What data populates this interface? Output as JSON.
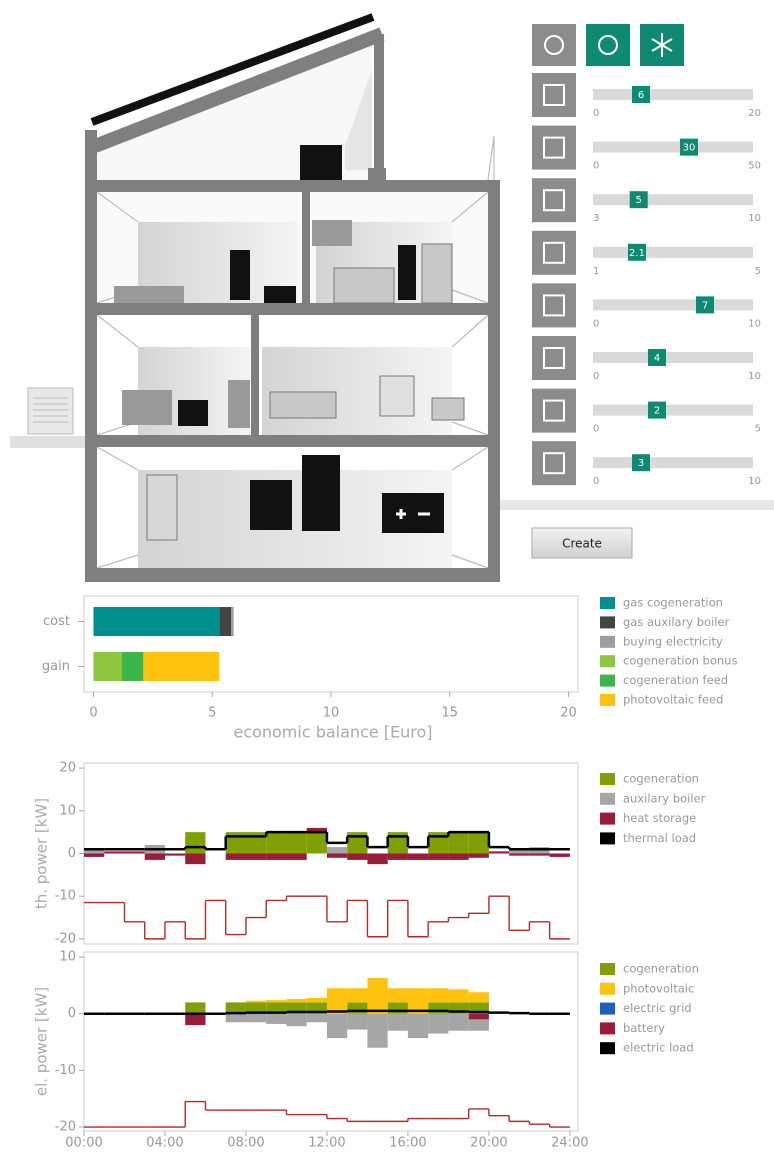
{
  "sliders": [
    {
      "value": 6,
      "min": 0,
      "max": 20
    },
    {
      "value": 30,
      "min": 0,
      "max": 50
    },
    {
      "value": 5,
      "min": 3,
      "max": 10
    },
    {
      "value": 2.1,
      "min": 1,
      "max": 5
    },
    {
      "value": 7,
      "min": 0,
      "max": 10
    },
    {
      "value": 4,
      "min": 0,
      "max": 10
    },
    {
      "value": 2,
      "min": 0,
      "max": 5
    },
    {
      "value": 3,
      "min": 0,
      "max": 10
    }
  ],
  "create_button": "Create",
  "chart_data": [
    {
      "type": "bar",
      "orientation": "horizontal",
      "stacked": true,
      "categories": [
        "cost",
        "gain"
      ],
      "xlabel": "economic balance [Euro]",
      "xlim": [
        -0.4,
        20.4
      ],
      "xticks": [
        0,
        5,
        10,
        15,
        20
      ],
      "series": [
        {
          "name": "gas cogeneration",
          "color": "#00918f",
          "values": [
            5.3,
            0
          ]
        },
        {
          "name": "gas auxilary boiler",
          "color": "#444444",
          "values": [
            0.5,
            0
          ]
        },
        {
          "name": "buying electricity",
          "color": "#9e9e9e",
          "values": [
            0.1,
            0
          ]
        },
        {
          "name": "cogeneration bonus",
          "color": "#8dc63f",
          "values": [
            0,
            1.2
          ]
        },
        {
          "name": "cogeneration feed",
          "color": "#3cb54a",
          "values": [
            0,
            0.9
          ]
        },
        {
          "name": "photovoltaic feed",
          "color": "#ffc20e",
          "values": [
            0,
            3.2
          ]
        }
      ]
    },
    {
      "type": "step",
      "ylabel": "th. power [kW]",
      "x": [
        0,
        1,
        2,
        3,
        4,
        5,
        6,
        7,
        8,
        9,
        10,
        11,
        12,
        13,
        14,
        15,
        16,
        17,
        18,
        19,
        20,
        21,
        22,
        23
      ],
      "xlim": [
        0,
        24.4
      ],
      "ylim": [
        -21.2,
        21.2
      ],
      "yticks": [
        20,
        10,
        0,
        -10,
        -20
      ],
      "series": [
        {
          "name": "cogeneration",
          "color": "#7fa000",
          "kind": "bar",
          "values": [
            0,
            0,
            0,
            0,
            0,
            5,
            0,
            5,
            5,
            5,
            5,
            5,
            0,
            5,
            0,
            5,
            0,
            5,
            5,
            5,
            0,
            0,
            0,
            0
          ]
        },
        {
          "name": "auxilary boiler",
          "color": "#a6a6a6",
          "kind": "bar",
          "values": [
            1,
            0,
            0,
            2,
            0,
            0,
            0,
            0,
            0,
            0,
            0,
            0,
            1.5,
            0,
            0,
            0,
            0,
            0,
            0,
            0,
            0,
            1,
            1.5,
            0
          ]
        },
        {
          "name": "heat storage",
          "color": "#9b1b3a",
          "kind": "bar",
          "values": [
            -0.8,
            0.5,
            0.5,
            -1.5,
            -0.5,
            -2.5,
            0,
            -1.5,
            -1.5,
            -1.5,
            -1.5,
            1,
            -1,
            -1.5,
            -2.5,
            -1.5,
            -1.5,
            -1.5,
            -1.5,
            -1,
            0.5,
            -0.5,
            -0.5,
            -0.8
          ]
        },
        {
          "name": "thermal load",
          "color": "#000000",
          "kind": "line",
          "values": [
            1,
            1,
            1,
            1,
            1,
            1.5,
            1,
            4,
            4,
            5,
            5,
            5,
            2.5,
            4,
            1.5,
            4,
            1.5,
            4,
            5,
            5,
            1.5,
            1,
            1,
            1
          ]
        },
        {
          "color": "#b22a2a",
          "kind": "line",
          "values": [
            -11.5,
            -11.5,
            -16,
            -20,
            -16,
            -20,
            -11,
            -19,
            -15,
            -11,
            -10,
            -10,
            -16,
            -11,
            -19.5,
            -11,
            -19.5,
            -16,
            -15,
            -14,
            -10,
            -18,
            -16,
            -20
          ]
        }
      ]
    },
    {
      "type": "step",
      "ylabel": "el. power [kW]",
      "x": [
        0,
        1,
        2,
        3,
        4,
        5,
        6,
        7,
        8,
        9,
        10,
        11,
        12,
        13,
        14,
        15,
        16,
        17,
        18,
        19,
        20,
        21,
        22,
        23
      ],
      "xlim": [
        0,
        24.4
      ],
      "xticks": [
        {
          "value": 0,
          "label": "00:00"
        },
        {
          "value": 4,
          "label": "04:00"
        },
        {
          "value": 8,
          "label": "08:00"
        },
        {
          "value": 12,
          "label": "12:00"
        },
        {
          "value": 16,
          "label": "16:00"
        },
        {
          "value": 20,
          "label": "20:00"
        },
        {
          "value": 24,
          "label": "24:00"
        }
      ],
      "ylim": [
        -20.7,
        10.9
      ],
      "yticks": [
        10,
        0,
        -10,
        -20
      ],
      "series": [
        {
          "name": "cogeneration",
          "color": "#7fa000",
          "kind": "bar",
          "values": [
            0,
            0,
            0,
            0,
            0,
            2,
            0,
            2,
            2,
            2,
            2,
            2,
            0,
            2,
            0,
            2,
            0,
            2,
            2,
            2,
            0,
            0,
            0,
            0
          ]
        },
        {
          "name": "photovoltaic",
          "color": "#ffc20e",
          "kind": "bar",
          "values": [
            0,
            0,
            0,
            0,
            0,
            0,
            0,
            0,
            0.3,
            0.4,
            0.6,
            0.8,
            4.5,
            2.5,
            6.3,
            2.5,
            4.5,
            2.5,
            2.3,
            1.8,
            0,
            0,
            0,
            0
          ]
        },
        {
          "name": "electric grid",
          "color": "#1f5fbf",
          "kind": "bar",
          "values": [
            0,
            0,
            0,
            0,
            0,
            0,
            0,
            0,
            0,
            0,
            0,
            0,
            0,
            0,
            0,
            0,
            0,
            0,
            0,
            0,
            0,
            0,
            0,
            0
          ]
        },
        {
          "name": "battery",
          "color": "#9b1b3a",
          "kind": "bar",
          "values": [
            0,
            0,
            0,
            0,
            0,
            -2,
            0,
            0,
            0,
            0,
            0,
            0,
            0,
            0,
            0,
            0,
            0,
            0,
            0,
            -1,
            0,
            0,
            0,
            0
          ]
        },
        {
          "color": "#a6a6a6",
          "kind": "bar",
          "values": [
            0,
            0,
            0,
            0,
            0,
            0,
            0,
            -1.5,
            -1.5,
            -1.8,
            -2.2,
            -1.5,
            -4.3,
            -2.8,
            -6,
            -3,
            -4.3,
            -3.5,
            -3,
            -2,
            0,
            0,
            0,
            0
          ]
        },
        {
          "name": "electric load",
          "color": "#000000",
          "kind": "line",
          "values": [
            0,
            0,
            0,
            0,
            0,
            0,
            0,
            0.1,
            0.2,
            0.2,
            0.3,
            0.3,
            0.4,
            0.5,
            0.5,
            0.5,
            0.5,
            0.5,
            0.4,
            0.3,
            0.2,
            0.1,
            0,
            0
          ]
        },
        {
          "color": "#b22a2a",
          "kind": "line",
          "values": [
            -20,
            -20,
            -20,
            -20,
            -20,
            -15.5,
            -17,
            -17,
            -17,
            -17,
            -17.8,
            -17.8,
            -18.5,
            -19,
            -19,
            -19,
            -18.5,
            -18.5,
            -18.5,
            -16.8,
            -18,
            -19,
            -19.5,
            -20
          ]
        }
      ]
    }
  ]
}
